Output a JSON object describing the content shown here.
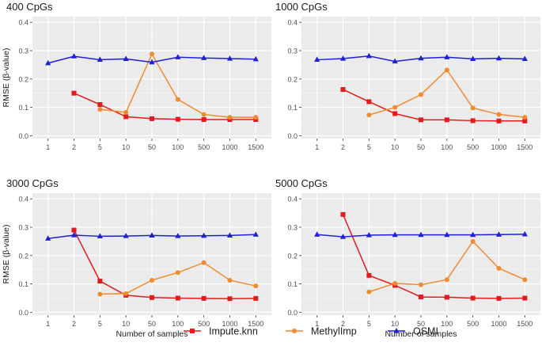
{
  "chart_data": {
    "type": "line",
    "categories": [
      "1",
      "2",
      "5",
      "10",
      "50",
      "100",
      "500",
      "1000",
      "1500"
    ],
    "ylim": [
      -0.01,
      0.42
    ],
    "yticks": [
      0.0,
      0.1,
      0.2,
      0.3,
      0.4
    ],
    "ytick_labels": [
      "0.0",
      "0.1",
      "0.2",
      "0.3",
      "0.4"
    ],
    "ylabel": "RMSE (β-value)",
    "xlabel": "Number of samples",
    "legend": {
      "position": "bottom",
      "entries": [
        "Impute.knn",
        "MethylImp",
        "OSMI"
      ]
    },
    "series_styles": [
      {
        "name": "Impute.knn",
        "color": "#e41a1c",
        "marker": "square"
      },
      {
        "name": "MethylImp",
        "color": "#f28a2e",
        "marker": "circle"
      },
      {
        "name": "OSMI",
        "color": "#1f1fd6",
        "marker": "triangle"
      }
    ],
    "panels": [
      {
        "title": "400 CpGs",
        "series": [
          {
            "name": "Impute.knn",
            "values": [
              null,
              0.15,
              0.11,
              0.067,
              0.06,
              0.058,
              0.057,
              0.057,
              0.057
            ]
          },
          {
            "name": "MethylImp",
            "values": [
              null,
              null,
              0.093,
              0.082,
              0.288,
              0.128,
              0.075,
              0.065,
              0.065
            ]
          },
          {
            "name": "OSMI",
            "values": [
              0.256,
              0.28,
              0.268,
              0.271,
              0.259,
              0.277,
              0.274,
              0.272,
              0.27
            ]
          }
        ]
      },
      {
        "title": "1000 CpGs",
        "series": [
          {
            "name": "Impute.knn",
            "values": [
              null,
              0.163,
              0.12,
              0.078,
              0.056,
              0.056,
              0.053,
              0.052,
              0.052
            ]
          },
          {
            "name": "MethylImp",
            "values": [
              null,
              null,
              0.073,
              0.1,
              0.145,
              0.232,
              0.098,
              0.075,
              0.065
            ]
          },
          {
            "name": "OSMI",
            "values": [
              0.268,
              0.272,
              0.281,
              0.262,
              0.273,
              0.277,
              0.271,
              0.273,
              0.271
            ]
          }
        ]
      },
      {
        "title": "3000 CpGs",
        "series": [
          {
            "name": "Impute.knn",
            "values": [
              null,
              0.29,
              0.11,
              0.06,
              0.052,
              0.05,
              0.049,
              0.048,
              0.049
            ]
          },
          {
            "name": "MethylImp",
            "values": [
              null,
              null,
              0.064,
              0.066,
              0.113,
              0.14,
              0.175,
              0.113,
              0.093
            ]
          },
          {
            "name": "OSMI",
            "values": [
              0.26,
              0.272,
              0.268,
              0.269,
              0.271,
              0.269,
              0.27,
              0.271,
              0.274
            ]
          }
        ]
      },
      {
        "title": "5000 CpGs",
        "series": [
          {
            "name": "Impute.knn",
            "values": [
              null,
              0.345,
              0.13,
              0.095,
              0.054,
              0.053,
              0.05,
              0.049,
              0.05
            ]
          },
          {
            "name": "MethylImp",
            "values": [
              null,
              null,
              0.072,
              0.102,
              0.097,
              0.115,
              0.25,
              0.155,
              0.115
            ]
          },
          {
            "name": "OSMI",
            "values": [
              0.274,
              0.266,
              0.272,
              0.273,
              0.273,
              0.273,
              0.273,
              0.274,
              0.275
            ]
          }
        ]
      }
    ]
  }
}
